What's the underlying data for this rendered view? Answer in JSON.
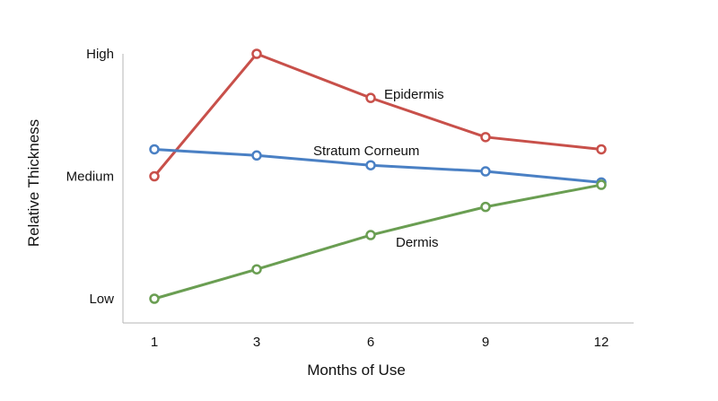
{
  "chart_data": {
    "type": "line",
    "title": "",
    "xlabel": "Months of Use",
    "ylabel": "Relative Thickness",
    "x": [
      1,
      3,
      6,
      9,
      12
    ],
    "x_tick_labels": [
      "1",
      "3",
      "6",
      "9",
      "12"
    ],
    "y_tick_labels": [
      "Low",
      "Medium",
      "High"
    ],
    "y_tick_values": [
      0,
      1,
      2
    ],
    "ylim": [
      0,
      2
    ],
    "grid": false,
    "legend": "none (series labeled inline)",
    "series": [
      {
        "name": "Epidermis",
        "color": "#c8504a",
        "values": [
          1.0,
          2.0,
          1.64,
          1.32,
          1.22
        ]
      },
      {
        "name": "Stratum Corneum",
        "color": "#4a80c4",
        "values": [
          1.22,
          1.17,
          1.09,
          1.04,
          0.95
        ]
      },
      {
        "name": "Dermis",
        "color": "#6a9e52",
        "values": [
          0.0,
          0.24,
          0.52,
          0.75,
          0.93
        ]
      }
    ]
  }
}
